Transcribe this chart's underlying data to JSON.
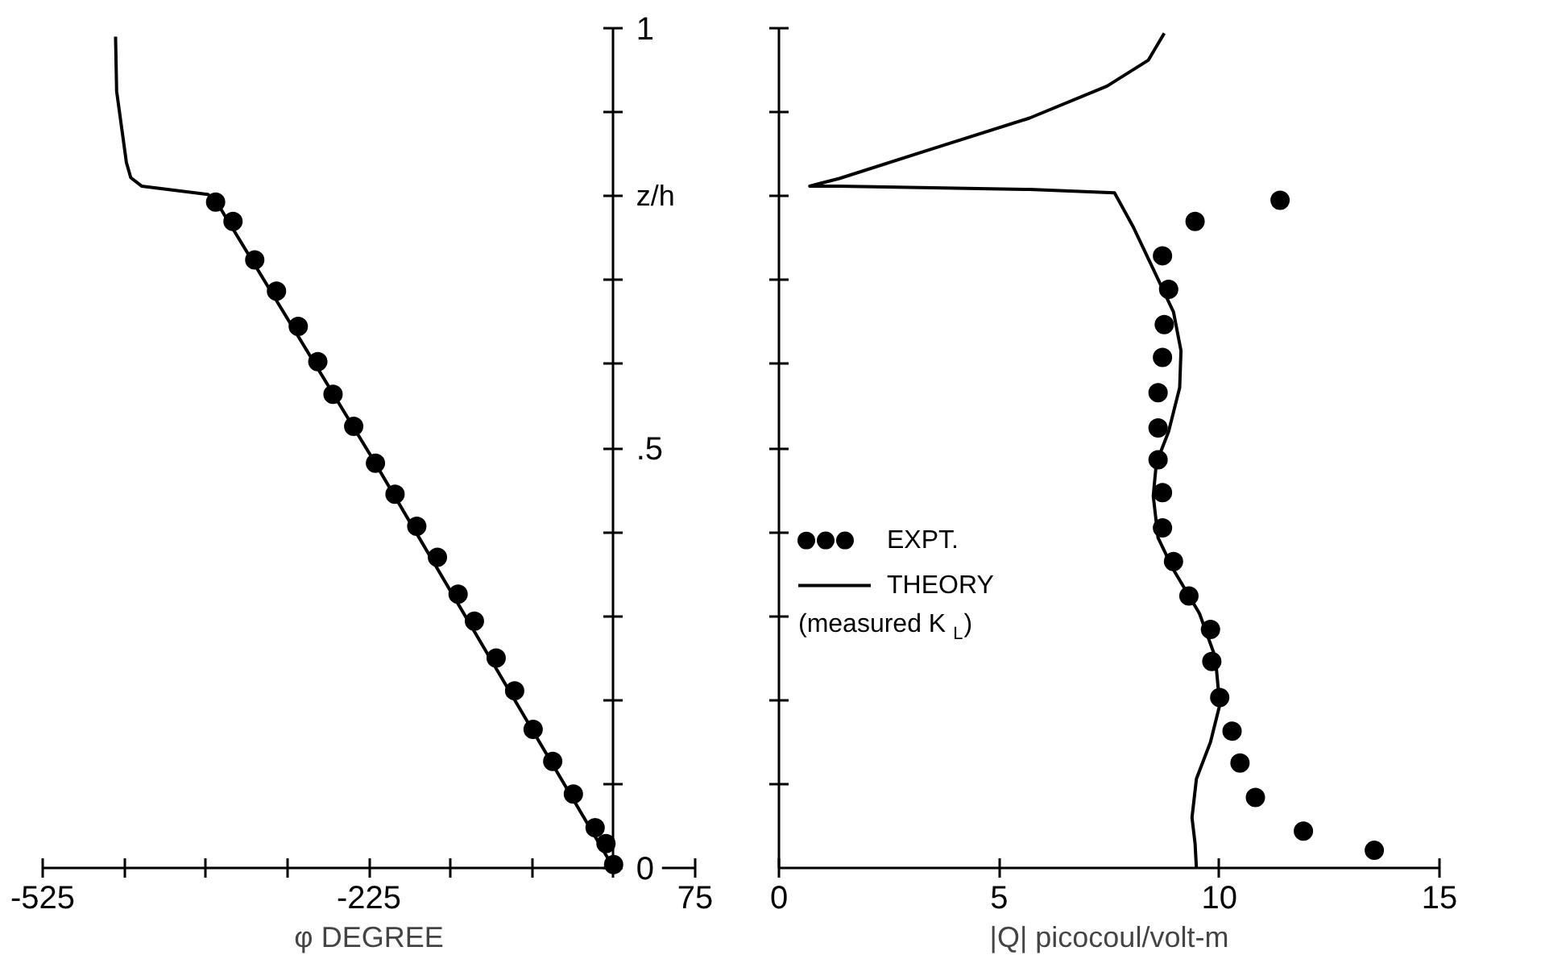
{
  "chart_data": [
    {
      "type": "line",
      "xlabel": "φ DEGREE",
      "ylabel": "z/h",
      "xlim": [
        -525,
        75
      ],
      "ylim": [
        0,
        1
      ],
      "xticks": [
        -525,
        {
          "value": -450,
          "label": null
        },
        {
          "value": -375,
          "label": null
        },
        {
          "value": -300,
          "label": null
        },
        -225,
        {
          "value": -150,
          "label": null
        },
        {
          "value": -75,
          "label": null
        },
        {
          "value": 0,
          "label": null
        },
        75
      ],
      "yticks": [
        0,
        {
          "value": 0.1,
          "label": null
        },
        {
          "value": 0.2,
          "label": null
        },
        {
          "value": 0.3,
          "label": null
        },
        {
          "value": 0.4,
          "label": null
        },
        {
          "value": 0.5,
          "label": ".5"
        },
        {
          "value": 0.6,
          "label": null
        },
        {
          "value": 0.7,
          "label": null
        },
        {
          "value": 0.8,
          "label": null
        },
        {
          "value": 0.9,
          "label": null
        },
        1
      ],
      "grid": false,
      "legend": false,
      "series": [
        {
          "color": "#000000",
          "x": [
            0,
            -221,
            -366,
            -373,
            -434,
            -444,
            -448,
            -457,
            -458
          ],
          "values": [
            0,
            0.486,
            0.795,
            0.802,
            0.812,
            0.822,
            0.84,
            0.925,
            0.99
          ]
        },
        {
          "type": "scatter",
          "marker": "circle",
          "color": "#000000",
          "x": [
            -366,
            -350,
            -330,
            -310,
            -290,
            -272,
            -258,
            -239,
            -219,
            -201,
            -181,
            -162,
            -143,
            -128,
            -108,
            -91,
            -74,
            -56,
            -37,
            -17,
            -7,
            0
          ],
          "values": [
            0.793,
            0.77,
            0.724,
            0.687,
            0.645,
            0.603,
            0.564,
            0.526,
            0.482,
            0.445,
            0.407,
            0.37,
            0.326,
            0.294,
            0.25,
            0.211,
            0.165,
            0.127,
            0.088,
            0.048,
            0.029,
            0.004
          ]
        }
      ]
    },
    {
      "type": "line",
      "xlabel": "|Q| picocoul/volt-m",
      "xlim": [
        0,
        15
      ],
      "ylim": [
        0,
        1
      ],
      "tick_labels": "x",
      "xticks": [
        0,
        5,
        10,
        15
      ],
      "yticks": [
        {
          "value": 0.1,
          "label": null
        },
        {
          "value": 0.2,
          "label": null
        },
        {
          "value": 0.3,
          "label": null
        },
        {
          "value": 0.4,
          "label": null
        },
        {
          "value": 0.5,
          "label": null
        },
        {
          "value": 0.6,
          "label": null
        },
        {
          "value": 0.7,
          "label": null
        },
        {
          "value": 0.8,
          "label": null
        },
        {
          "value": 0.9,
          "label": null
        },
        {
          "value": 1,
          "label": null
        }
      ],
      "grid": false,
      "legend": "left",
      "series": [
        {
          "type": "scatter",
          "marker": "circle",
          "name": "EXPT.",
          "color": "#000000",
          "x": [
            11.38,
            9.45,
            8.71,
            8.85,
            8.75,
            8.71,
            8.61,
            8.61,
            8.61,
            8.71,
            8.71,
            8.96,
            9.31,
            9.8,
            9.83,
            10.01,
            10.29,
            10.47,
            10.82,
            11.91,
            13.52
          ],
          "values": [
            0.795,
            0.77,
            0.729,
            0.689,
            0.647,
            0.608,
            0.566,
            0.524,
            0.486,
            0.447,
            0.405,
            0.365,
            0.324,
            0.284,
            0.246,
            0.203,
            0.163,
            0.125,
            0.084,
            0.044,
            0.021
          ]
        },
        {
          "name": "THEORY (measured K$_{L}$)",
          "color": "#000000",
          "x": [
            8.75,
            8.39,
            7.45,
            5.69,
            3.34,
            1.37,
            0.7,
            1.37,
            5.69,
            7.62,
            8.04,
            8.61,
            8.96,
            9.13,
            9.1,
            8.85,
            8.57,
            8.5,
            8.61,
            8.96,
            9.55,
            9.91,
            10.01,
            9.8,
            9.48,
            9.38,
            9.45,
            9.48
          ],
          "values": [
            0.994,
            0.962,
            0.931,
            0.893,
            0.854,
            0.821,
            0.812,
            0.812,
            0.808,
            0.804,
            0.764,
            0.701,
            0.662,
            0.616,
            0.572,
            0.52,
            0.482,
            0.443,
            0.393,
            0.355,
            0.303,
            0.251,
            0.194,
            0.15,
            0.106,
            0.06,
            0.029,
            0
          ]
        }
      ]
    }
  ]
}
